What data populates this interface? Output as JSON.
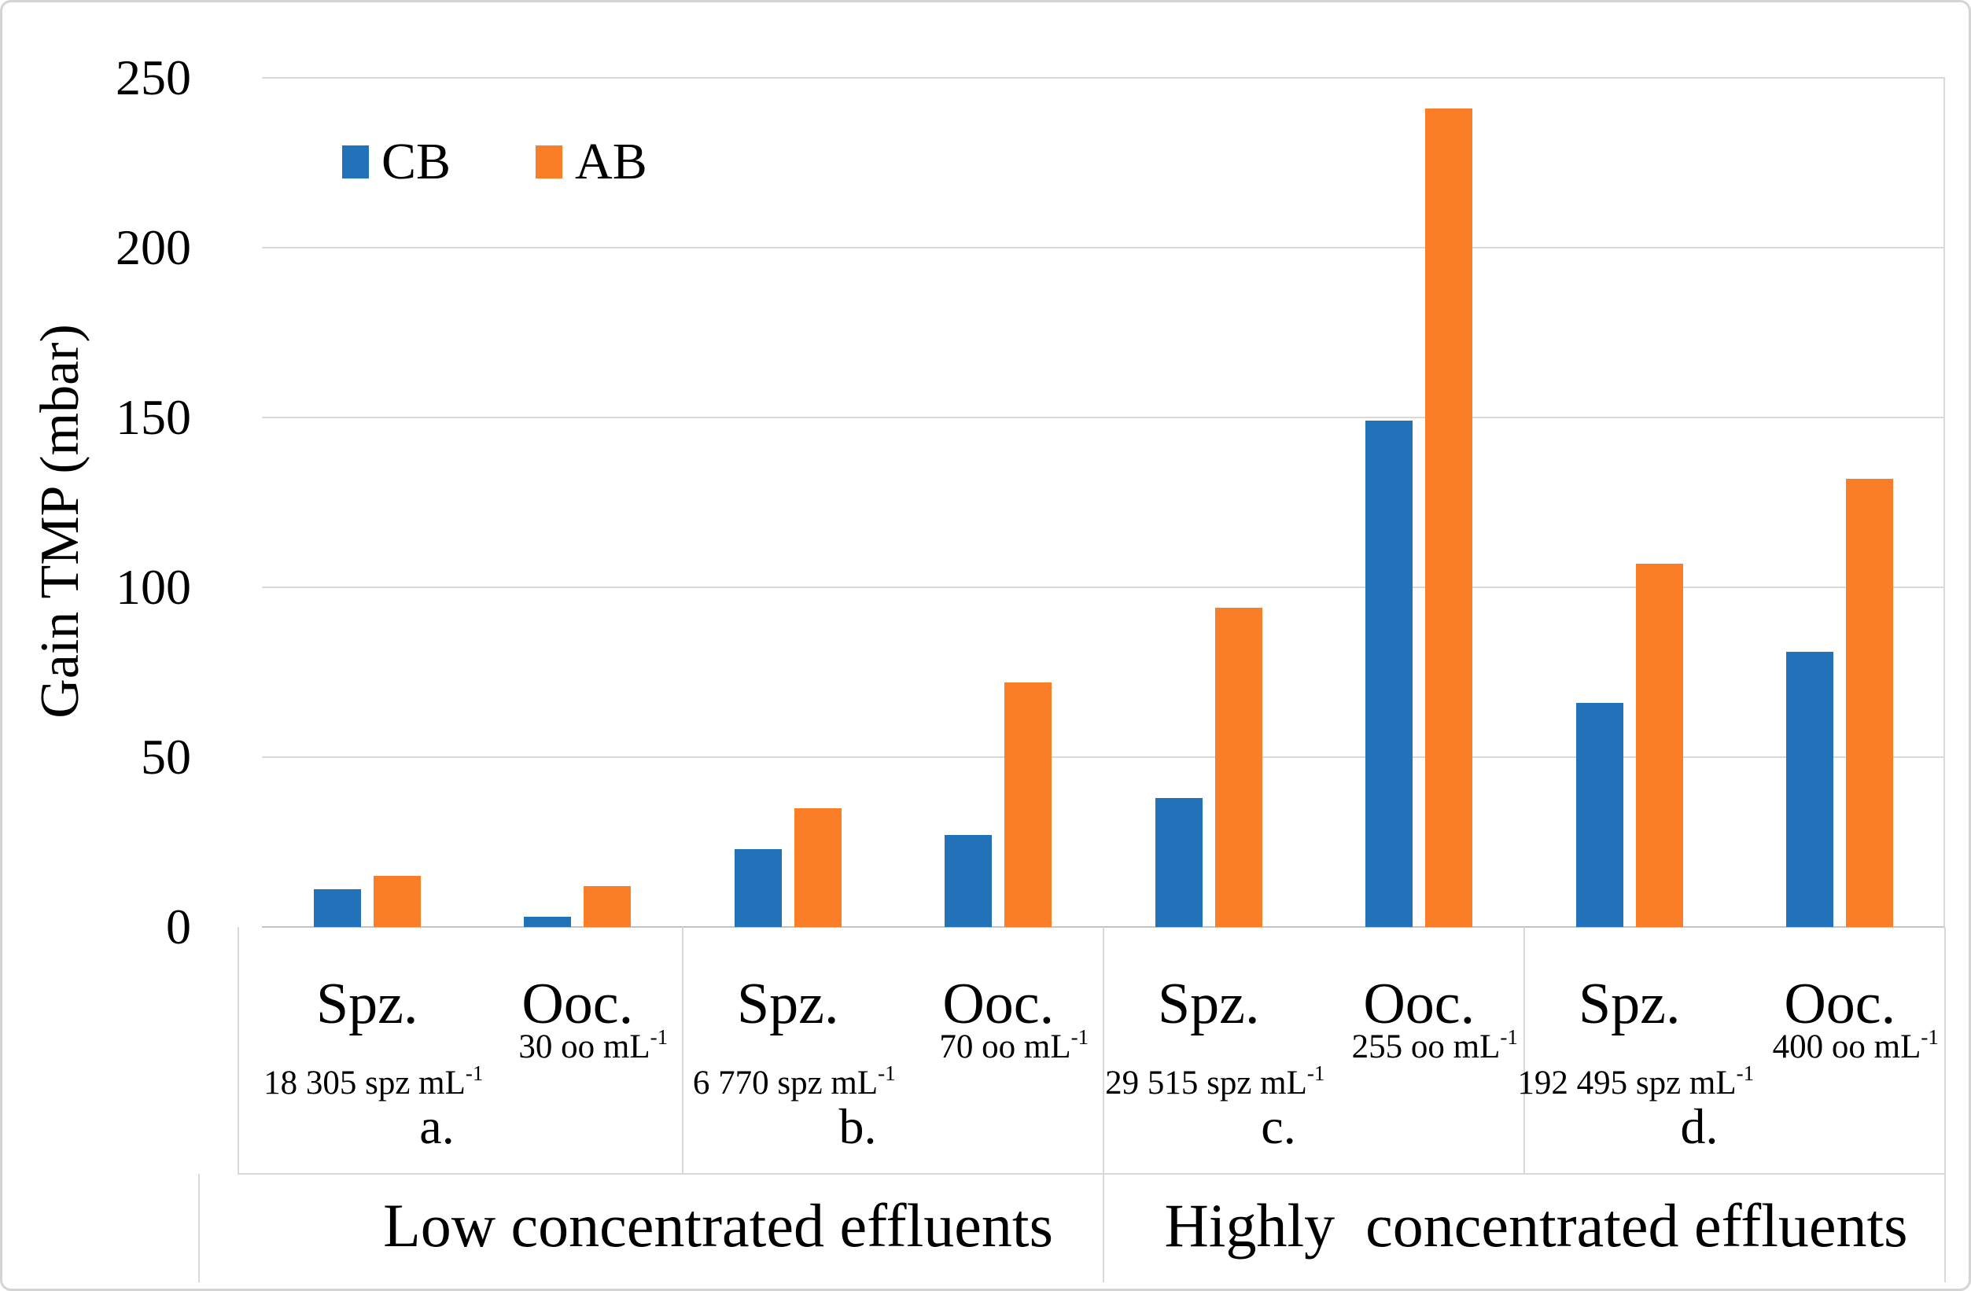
{
  "figure": {
    "background": "#ffffff",
    "frame_color": "#d4d4d4",
    "gridline_color": "#d9d9d9"
  },
  "chart_data": {
    "type": "bar",
    "title": "",
    "ylabel": "Gain TMP (mbar)",
    "ylim": [
      0,
      250
    ],
    "yticks": [
      "0",
      "50",
      "100",
      "150",
      "200",
      "250"
    ],
    "grid": "horizontal",
    "legend": {
      "position": "top-left-inside",
      "entries": [
        {
          "name": "CB",
          "color": "#2272b9"
        },
        {
          "name": "AB",
          "color": "#fa7d28"
        }
      ]
    },
    "groups": [
      {
        "letter": "a.",
        "categories": [
          {
            "label": "Spz.",
            "concentration": "18 305 spz mL",
            "concentration_sup": "-1",
            "CB": 11,
            "AB": 15
          },
          {
            "label": "Ooc.",
            "concentration": "30 oo mL",
            "concentration_sup": "-1",
            "CB": 3,
            "AB": 12
          }
        ]
      },
      {
        "letter": "b.",
        "categories": [
          {
            "label": "Spz.",
            "concentration": "6 770 spz mL",
            "concentration_sup": "-1",
            "CB": 23,
            "AB": 35
          },
          {
            "label": "Ooc.",
            "concentration": "70 oo mL",
            "concentration_sup": "-1",
            "CB": 27,
            "AB": 72
          }
        ]
      },
      {
        "letter": "c.",
        "categories": [
          {
            "label": "Spz.",
            "concentration": "29 515 spz mL",
            "concentration_sup": "-1",
            "CB": 38,
            "AB": 94
          },
          {
            "label": "Ooc.",
            "concentration": "255 oo mL",
            "concentration_sup": "-1",
            "CB": 149,
            "AB": 241
          }
        ]
      },
      {
        "letter": "d.",
        "categories": [
          {
            "label": "Spz.",
            "concentration": "192 495 spz mL",
            "concentration_sup": "-1",
            "CB": 66,
            "AB": 107
          },
          {
            "label": "Ooc.",
            "concentration": "400 oo mL",
            "concentration_sup": "-1",
            "CB": 81,
            "AB": 132
          }
        ]
      }
    ],
    "sections": [
      {
        "label": "Low concentrated effluents",
        "spans_groups": [
          "a.",
          "b."
        ]
      },
      {
        "label": "Highly  concentrated effluents",
        "spans_groups": [
          "c.",
          "d."
        ]
      }
    ]
  }
}
